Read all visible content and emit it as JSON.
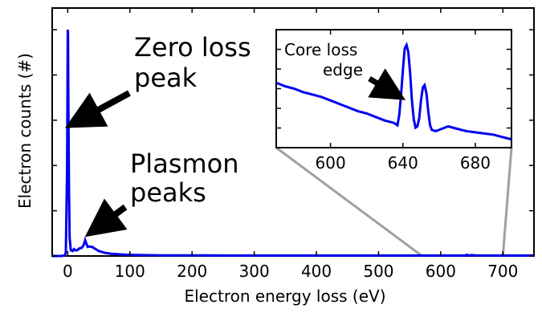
{
  "chart_data": {
    "type": "line",
    "xlabel": "Electron energy loss (eV)",
    "ylabel": "Electron counts (#)",
    "xlim": [
      -25,
      750
    ],
    "ylim": [
      0,
      100
    ],
    "x_ticks": [
      0,
      100,
      200,
      300,
      400,
      500,
      600,
      700
    ],
    "y_tick_labels_visible": false,
    "line_color": "#0000ee",
    "annotations": {
      "zero_loss": [
        "Zero loss",
        "peak"
      ],
      "plasmon": [
        "Plasmon",
        "peaks"
      ],
      "core_loss": [
        "Core loss",
        "edge"
      ]
    },
    "main_series": {
      "x": [
        -25,
        -10,
        -5,
        -3,
        -1,
        0,
        0.5,
        1,
        2,
        3,
        5,
        8,
        10,
        12,
        15,
        18,
        20,
        22,
        25,
        27,
        28,
        30,
        32,
        35,
        38,
        40,
        42,
        45,
        50,
        55,
        60,
        70,
        80,
        90,
        100,
        120,
        150,
        200,
        250,
        300,
        350,
        400,
        450,
        500,
        550,
        600,
        639,
        642,
        645,
        650,
        655,
        700,
        750
      ],
      "y": [
        0,
        0,
        0.2,
        1.5,
        40,
        100,
        98,
        70,
        30,
        8,
        2.5,
        2.2,
        3,
        2.5,
        2.5,
        3.2,
        3.5,
        3.5,
        4.5,
        6,
        7,
        5.5,
        4,
        4.2,
        4,
        4,
        3.5,
        3,
        2.2,
        1.8,
        1.4,
        1,
        0.8,
        0.6,
        0.5,
        0.4,
        0.3,
        0.3,
        0.2,
        0.2,
        0.2,
        0.2,
        0.2,
        0.2,
        0.2,
        0.2,
        0.2,
        0.5,
        0.3,
        0.4,
        0.3,
        0.2,
        0.2
      ]
    },
    "inset": {
      "xlim": [
        570,
        700
      ],
      "ylim": [
        0,
        100
      ],
      "x_ticks": [
        600,
        640,
        680
      ],
      "x": [
        570,
        575,
        580,
        585,
        590,
        595,
        600,
        605,
        610,
        615,
        620,
        625,
        630,
        635,
        637,
        638,
        639,
        640,
        641,
        642,
        643,
        644,
        645,
        646,
        647,
        648,
        649,
        650,
        651,
        652,
        653,
        654,
        655,
        656,
        658,
        660,
        665,
        670,
        675,
        680,
        685,
        690,
        695,
        700
      ],
      "y": [
        55,
        52,
        50,
        47,
        45,
        43,
        40,
        37,
        34,
        31,
        29,
        26,
        23,
        21,
        19,
        28,
        45,
        66,
        84,
        87,
        81,
        63,
        40,
        24,
        17,
        18,
        25,
        40,
        51,
        53,
        46,
        31,
        19,
        15,
        14,
        15,
        18,
        16,
        14,
        13,
        12,
        11,
        9,
        7
      ]
    },
    "zoom_source": [
      570,
      700
    ]
  }
}
